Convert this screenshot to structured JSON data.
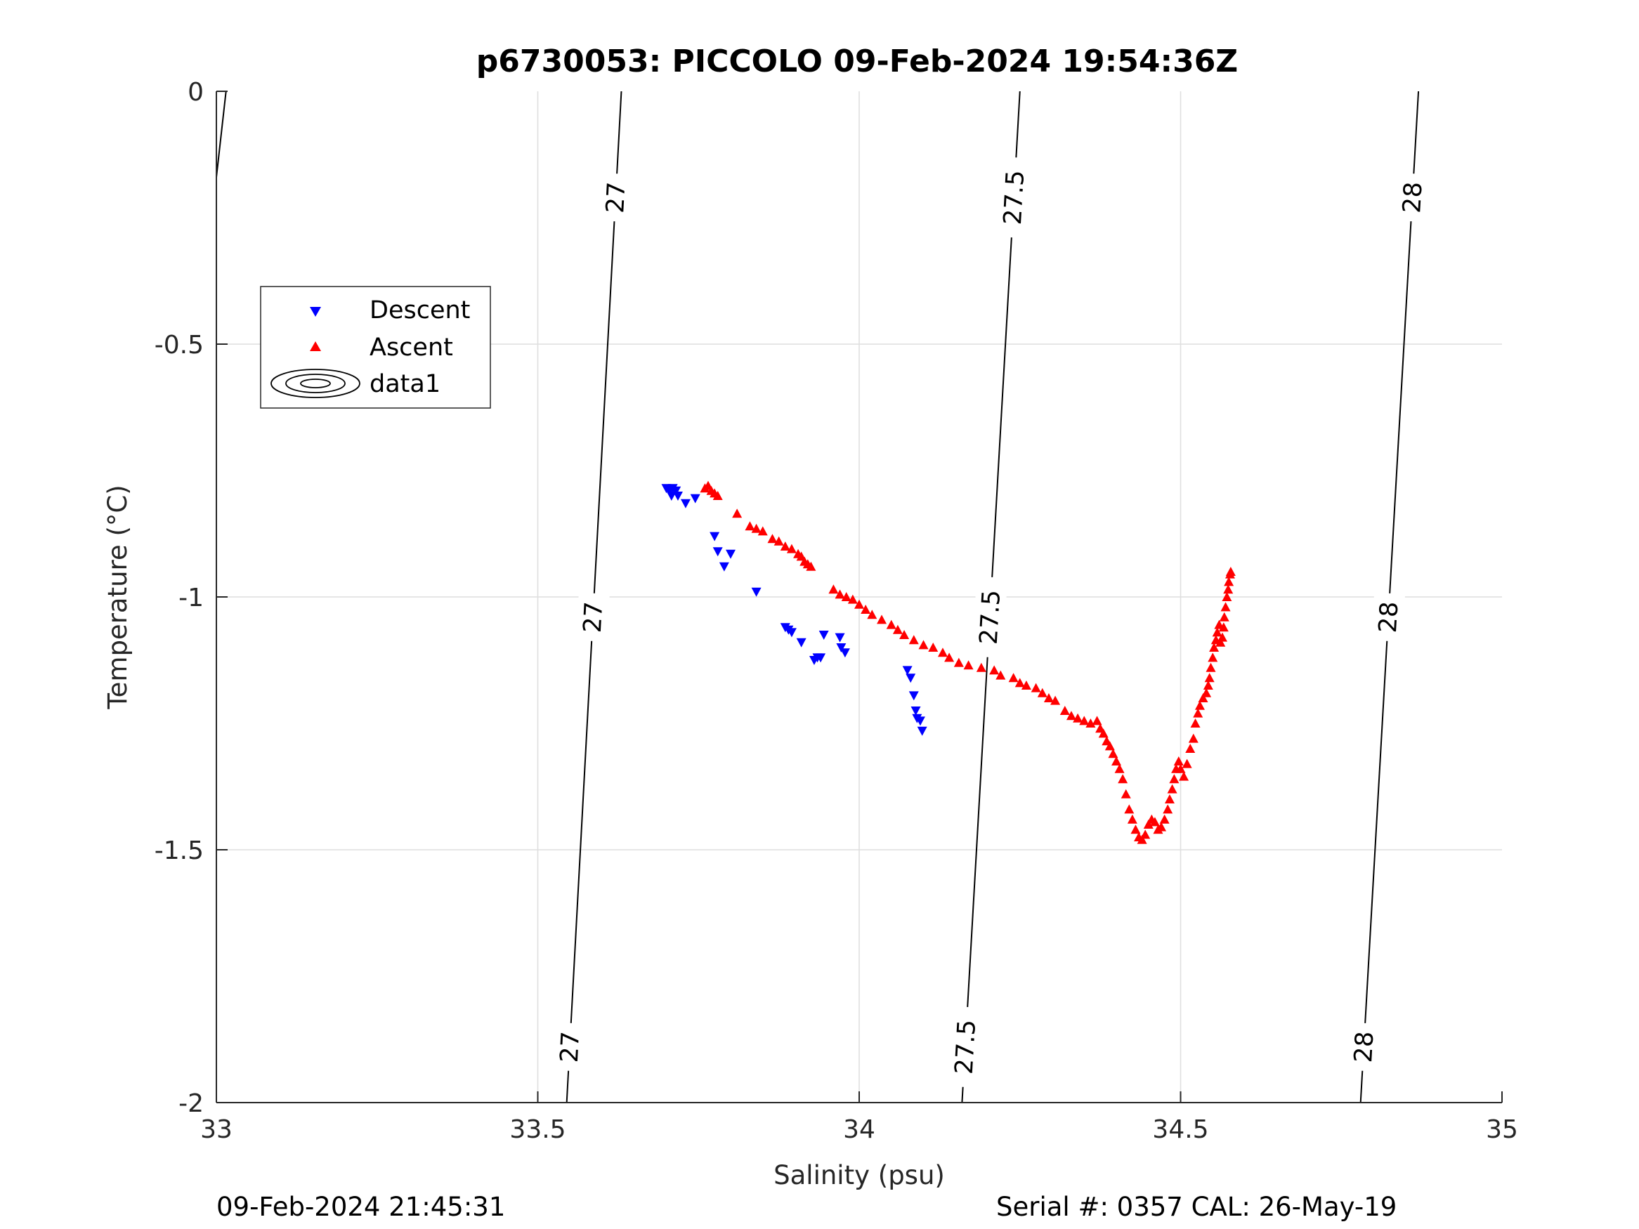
{
  "chart_data": {
    "type": "scatter",
    "title": "p6730053: PICCOLO 09-Feb-2024 19:54:36Z",
    "xlabel": "Salinity (psu)",
    "ylabel": "Temperature (°C)",
    "xlim": [
      33,
      35
    ],
    "ylim": [
      -2,
      0
    ],
    "xticks": [
      33,
      33.5,
      34,
      34.5,
      35
    ],
    "xtick_labels": [
      "33",
      "33.5",
      "34",
      "34.5",
      "35"
    ],
    "yticks": [
      0,
      -0.5,
      -1,
      -1.5,
      -2
    ],
    "ytick_labels": [
      "0",
      "-0.5",
      "-1",
      "-1.5",
      "-2"
    ],
    "grid": true,
    "legend_position": "top-left",
    "footer_left": "09-Feb-2024 21:45:31",
    "footer_right": "Serial #: 0357  CAL: 26-May-19",
    "contours": [
      {
        "level": "27",
        "s_top": 33.63,
        "s_bottom": 33.545,
        "label_t": [
          -0.21,
          -1.04,
          -1.89
        ]
      },
      {
        "level": "27.5",
        "s_top": 34.25,
        "s_bottom": 34.16,
        "label_t": [
          -0.21,
          -1.04,
          -1.89
        ]
      },
      {
        "level": "28",
        "s_top": 34.87,
        "s_bottom": 34.78,
        "label_t": [
          -0.21,
          -1.04,
          -1.89
        ]
      },
      {
        "level": "",
        "s_top": 33.015,
        "s_bottom": 33.0,
        "t_bottom": -0.17,
        "label_t": []
      }
    ],
    "series": [
      {
        "name": "Descent",
        "marker": "triangle-down",
        "color": "#0000ff",
        "points": [
          [
            33.7,
            -0.785
          ],
          [
            33.705,
            -0.79
          ],
          [
            33.71,
            -0.785
          ],
          [
            33.715,
            -0.79
          ],
          [
            33.708,
            -0.8
          ],
          [
            33.718,
            -0.8
          ],
          [
            33.73,
            -0.815
          ],
          [
            33.745,
            -0.805
          ],
          [
            33.775,
            -0.88
          ],
          [
            33.78,
            -0.91
          ],
          [
            33.79,
            -0.94
          ],
          [
            33.8,
            -0.915
          ],
          [
            33.84,
            -0.99
          ],
          [
            33.885,
            -1.06
          ],
          [
            33.89,
            -1.065
          ],
          [
            33.895,
            -1.07
          ],
          [
            33.91,
            -1.09
          ],
          [
            33.93,
            -1.125
          ],
          [
            33.935,
            -1.12
          ],
          [
            33.94,
            -1.12
          ],
          [
            33.945,
            -1.075
          ],
          [
            33.97,
            -1.08
          ],
          [
            33.972,
            -1.1
          ],
          [
            33.978,
            -1.11
          ],
          [
            34.075,
            -1.145
          ],
          [
            34.08,
            -1.16
          ],
          [
            34.085,
            -1.195
          ],
          [
            34.088,
            -1.225
          ],
          [
            34.09,
            -1.24
          ],
          [
            34.095,
            -1.245
          ],
          [
            34.098,
            -1.265
          ]
        ]
      },
      {
        "name": "Ascent",
        "marker": "triangle-up",
        "color": "#ff0000",
        "points": [
          [
            33.76,
            -0.785
          ],
          [
            33.765,
            -0.78
          ],
          [
            33.77,
            -0.79
          ],
          [
            33.775,
            -0.795
          ],
          [
            33.78,
            -0.8
          ],
          [
            33.81,
            -0.835
          ],
          [
            33.83,
            -0.86
          ],
          [
            33.84,
            -0.865
          ],
          [
            33.85,
            -0.87
          ],
          [
            33.865,
            -0.885
          ],
          [
            33.875,
            -0.89
          ],
          [
            33.885,
            -0.9
          ],
          [
            33.895,
            -0.905
          ],
          [
            33.905,
            -0.915
          ],
          [
            33.91,
            -0.92
          ],
          [
            33.915,
            -0.93
          ],
          [
            33.92,
            -0.935
          ],
          [
            33.925,
            -0.94
          ],
          [
            33.96,
            -0.985
          ],
          [
            33.97,
            -0.995
          ],
          [
            33.98,
            -1.0
          ],
          [
            33.99,
            -1.005
          ],
          [
            34.0,
            -1.015
          ],
          [
            34.01,
            -1.025
          ],
          [
            34.02,
            -1.035
          ],
          [
            34.035,
            -1.045
          ],
          [
            34.05,
            -1.055
          ],
          [
            34.06,
            -1.065
          ],
          [
            34.07,
            -1.075
          ],
          [
            34.085,
            -1.085
          ],
          [
            34.1,
            -1.095
          ],
          [
            34.115,
            -1.1
          ],
          [
            34.13,
            -1.11
          ],
          [
            34.14,
            -1.12
          ],
          [
            34.155,
            -1.13
          ],
          [
            34.17,
            -1.135
          ],
          [
            34.19,
            -1.14
          ],
          [
            34.21,
            -1.145
          ],
          [
            34.22,
            -1.155
          ],
          [
            34.24,
            -1.16
          ],
          [
            34.25,
            -1.17
          ],
          [
            34.26,
            -1.175
          ],
          [
            34.275,
            -1.18
          ],
          [
            34.285,
            -1.19
          ],
          [
            34.295,
            -1.2
          ],
          [
            34.305,
            -1.205
          ],
          [
            34.32,
            -1.225
          ],
          [
            34.33,
            -1.235
          ],
          [
            34.34,
            -1.24
          ],
          [
            34.35,
            -1.245
          ],
          [
            34.36,
            -1.25
          ],
          [
            34.37,
            -1.245
          ],
          [
            34.375,
            -1.26
          ],
          [
            34.38,
            -1.27
          ],
          [
            34.385,
            -1.285
          ],
          [
            34.39,
            -1.295
          ],
          [
            34.395,
            -1.31
          ],
          [
            34.4,
            -1.325
          ],
          [
            34.405,
            -1.34
          ],
          [
            34.41,
            -1.36
          ],
          [
            34.415,
            -1.39
          ],
          [
            34.42,
            -1.42
          ],
          [
            34.425,
            -1.44
          ],
          [
            34.43,
            -1.46
          ],
          [
            34.435,
            -1.475
          ],
          [
            34.44,
            -1.48
          ],
          [
            34.445,
            -1.47
          ],
          [
            34.45,
            -1.45
          ],
          [
            34.455,
            -1.44
          ],
          [
            34.46,
            -1.445
          ],
          [
            34.465,
            -1.46
          ],
          [
            34.47,
            -1.455
          ],
          [
            34.475,
            -1.44
          ],
          [
            34.48,
            -1.42
          ],
          [
            34.483,
            -1.4
          ],
          [
            34.487,
            -1.38
          ],
          [
            34.49,
            -1.36
          ],
          [
            34.493,
            -1.34
          ],
          [
            34.497,
            -1.325
          ],
          [
            34.5,
            -1.34
          ],
          [
            34.505,
            -1.355
          ],
          [
            34.51,
            -1.33
          ],
          [
            34.515,
            -1.3
          ],
          [
            34.52,
            -1.28
          ],
          [
            34.523,
            -1.25
          ],
          [
            34.527,
            -1.23
          ],
          [
            34.53,
            -1.215
          ],
          [
            34.535,
            -1.2
          ],
          [
            34.54,
            -1.19
          ],
          [
            34.543,
            -1.175
          ],
          [
            34.545,
            -1.16
          ],
          [
            34.547,
            -1.14
          ],
          [
            34.55,
            -1.12
          ],
          [
            34.552,
            -1.1
          ],
          [
            34.555,
            -1.085
          ],
          [
            34.557,
            -1.07
          ],
          [
            34.56,
            -1.055
          ],
          [
            34.562,
            -1.09
          ],
          [
            34.565,
            -1.08
          ],
          [
            34.567,
            -1.06
          ],
          [
            34.568,
            -1.04
          ],
          [
            34.57,
            -1.02
          ],
          [
            34.572,
            -1.0
          ],
          [
            34.574,
            -0.985
          ],
          [
            34.575,
            -0.97
          ],
          [
            34.577,
            -0.955
          ],
          [
            34.578,
            -0.95
          ]
        ]
      }
    ]
  },
  "legend": {
    "items": [
      {
        "label": "Descent"
      },
      {
        "label": "Ascent"
      },
      {
        "label": "data1"
      }
    ]
  }
}
